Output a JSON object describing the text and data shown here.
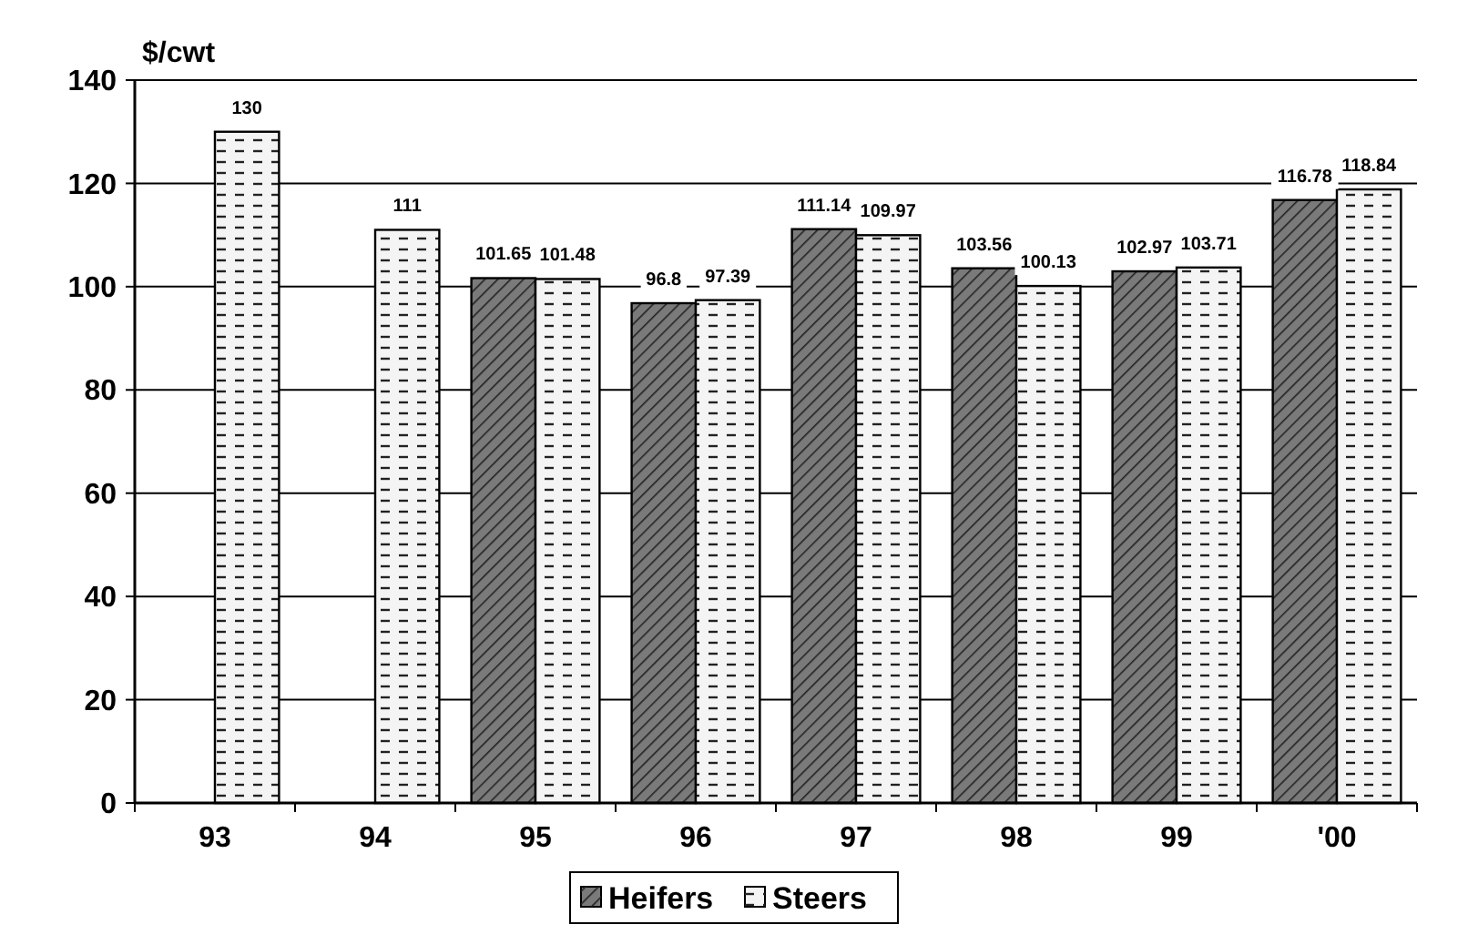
{
  "chart_data": {
    "type": "bar",
    "ylabel": "$/cwt",
    "categories": [
      "93",
      "94",
      "95",
      "96",
      "97",
      "98",
      "99",
      "'00"
    ],
    "series": [
      {
        "name": "Heifers",
        "color": "#7a7a7a",
        "values": [
          null,
          null,
          101.65,
          96.8,
          111.14,
          103.56,
          102.97,
          116.78
        ]
      },
      {
        "name": "Steers",
        "color": "#f4f4f4",
        "values": [
          130,
          111,
          101.48,
          97.39,
          109.97,
          100.13,
          103.71,
          118.84
        ]
      }
    ],
    "ylim": [
      0,
      140
    ],
    "yticks": [
      0,
      20,
      40,
      60,
      80,
      100,
      120,
      140
    ],
    "grid": "y",
    "legend": "bottom",
    "data_labels": true
  }
}
